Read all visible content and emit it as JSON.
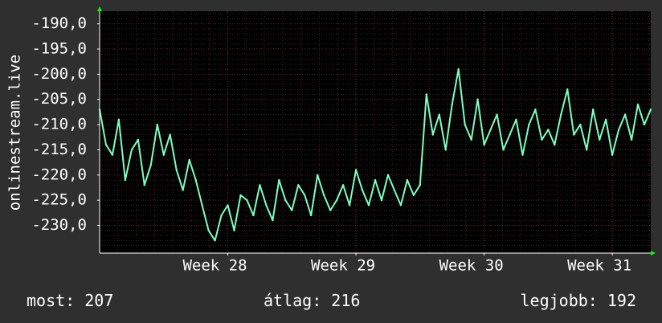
{
  "chart_data": {
    "type": "line",
    "ylabel": "onlinestream.live",
    "ylim": [
      -235.5,
      -187.5
    ],
    "y_ticks": [
      -190,
      -195,
      -200,
      -205,
      -210,
      -215,
      -220,
      -225,
      -230
    ],
    "y_tick_labels": [
      "-190,0",
      "-195,0",
      "-200,0",
      "-205,0",
      "-210,0",
      "-215,0",
      "-220,0",
      "-225,0",
      "-230,0"
    ],
    "x_ticks": [
      {
        "label": "Week 28",
        "x": 1
      },
      {
        "label": "Week 29",
        "x": 2
      },
      {
        "label": "Week 30",
        "x": 3
      },
      {
        "label": "Week 31",
        "x": 4
      }
    ],
    "xlim": [
      0.0,
      4.3
    ],
    "grid": true,
    "series": [
      {
        "color": "#7dffc0",
        "x": [
          0.0,
          0.05,
          0.1,
          0.15,
          0.2,
          0.25,
          0.3,
          0.35,
          0.4,
          0.45,
          0.5,
          0.55,
          0.6,
          0.65,
          0.7,
          0.75,
          0.8,
          0.85,
          0.9,
          0.95,
          1.0,
          1.05,
          1.1,
          1.15,
          1.2,
          1.25,
          1.3,
          1.35,
          1.4,
          1.45,
          1.5,
          1.55,
          1.6,
          1.65,
          1.7,
          1.75,
          1.8,
          1.85,
          1.9,
          1.95,
          2.0,
          2.05,
          2.1,
          2.15,
          2.2,
          2.25,
          2.3,
          2.35,
          2.4,
          2.45,
          2.5,
          2.55,
          2.6,
          2.65,
          2.7,
          2.75,
          2.8,
          2.85,
          2.9,
          2.95,
          3.0,
          3.05,
          3.1,
          3.15,
          3.2,
          3.25,
          3.3,
          3.35,
          3.4,
          3.45,
          3.5,
          3.55,
          3.6,
          3.65,
          3.7,
          3.75,
          3.8,
          3.85,
          3.9,
          3.95,
          4.0,
          4.05,
          4.1,
          4.15,
          4.2,
          4.25,
          4.3
        ],
        "values": [
          -207,
          -214,
          -216,
          -209,
          -221,
          -215,
          -213,
          -222,
          -218,
          -210,
          -216,
          -212,
          -219,
          -223,
          -217,
          -221,
          -226,
          -231,
          -233,
          -228,
          -226,
          -231,
          -224,
          -225,
          -228,
          -222,
          -226,
          -229,
          -221,
          -225,
          -227,
          -222,
          -224,
          -228,
          -220,
          -224,
          -227,
          -225,
          -222,
          -226,
          -219,
          -223,
          -226,
          -221,
          -225,
          -220,
          -223,
          -226,
          -221,
          -224,
          -222,
          -204,
          -212,
          -208,
          -215,
          -206,
          -199,
          -210,
          -213,
          -205,
          -214,
          -211,
          -208,
          -215,
          -212,
          -209,
          -216,
          -210,
          -207,
          -213,
          -211,
          -214,
          -208,
          -203,
          -212,
          -210,
          -215,
          -207,
          -213,
          -209,
          -216,
          -211,
          -208,
          -213,
          -206,
          -210,
          -207
        ]
      }
    ]
  },
  "footer": {
    "current": "most: 207",
    "average": "átlag: 216",
    "best": "legjobb: 192"
  }
}
